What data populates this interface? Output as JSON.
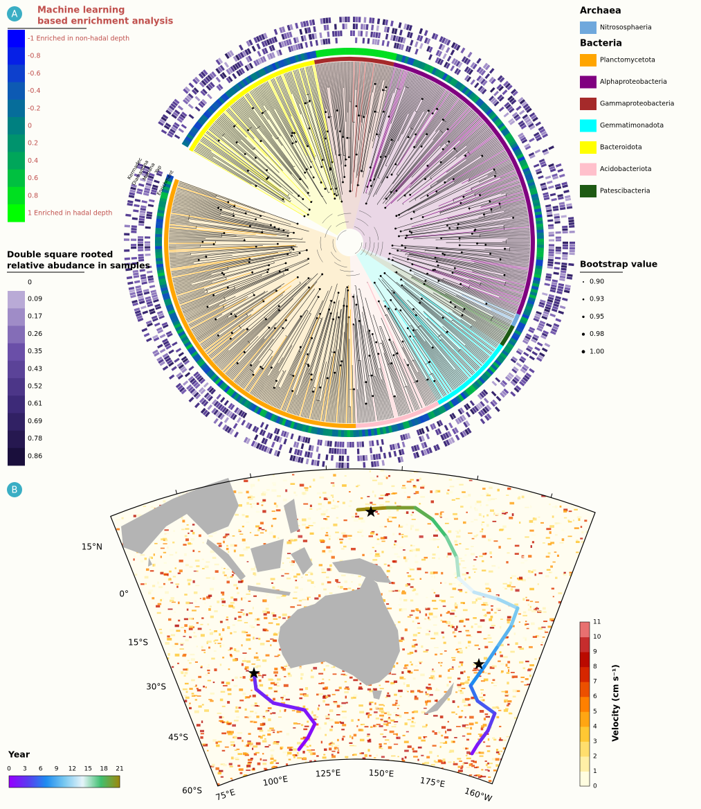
{
  "panel_a": {
    "label": "A",
    "enrichment_legend": {
      "title": [
        "Machine learning",
        "based enrichment analysis"
      ],
      "ticks": [
        "-1 Enriched in non-hadal depth",
        "-0.8",
        "-0.6",
        "-0.4",
        "-0.2",
        "0",
        "0.2",
        "0.4",
        "0.6",
        "0.8",
        "1 Enriched in hadal depth"
      ]
    },
    "abundance_legend": {
      "title": [
        "Double square rooted",
        "relative abudance in samples"
      ],
      "ticks": [
        "0",
        "0.09",
        "0.17",
        "0.26",
        "0.35",
        "0.43",
        "0.52",
        "0.61",
        "0.69",
        "0.78",
        "0.86"
      ]
    },
    "ring_labels": [
      "Kermadec",
      "Diamantina",
      "Mariana",
      "Yap",
      "Enrichment"
    ],
    "taxa_legend": {
      "groups": [
        {
          "name": "Archaea",
          "items": [
            {
              "name": "Nitrososphaeria",
              "color": "#6fa8dc"
            }
          ]
        },
        {
          "name": "Bacteria",
          "items": [
            {
              "name": "Planctomycetota",
              "color": "#ffa500"
            },
            {
              "name": "Alphaproteobacteria",
              "color": "#800080"
            },
            {
              "name": "Gammaproteobacteria",
              "color": "#a52a2a"
            },
            {
              "name": "Gemmatimonadota",
              "color": "#00ffff"
            },
            {
              "name": "Bacteroidota",
              "color": "#ffff00"
            },
            {
              "name": "Acidobacteriota",
              "color": "#ffc0cb"
            },
            {
              "name": "Patescibacteria",
              "color": "#1e5a14"
            }
          ]
        }
      ]
    },
    "bootstrap_legend": {
      "title": "Bootstrap value",
      "items": [
        "0.90",
        "0.93",
        "0.95",
        "0.98",
        "1.00"
      ]
    }
  },
  "panel_b": {
    "label": "B",
    "lat_labels": [
      "15°N",
      "0°",
      "15°S",
      "30°S",
      "45°S",
      "60°S"
    ],
    "lon_labels": [
      "75°E",
      "100°E",
      "125°E",
      "150°E",
      "175°E",
      "160°W"
    ],
    "velocity_colorbar": {
      "label": "Velocity (cm s⁻¹)",
      "ticks": [
        "0",
        "1",
        "2",
        "3",
        "4",
        "5",
        "6",
        "7",
        "8",
        "9",
        "10",
        "11"
      ]
    },
    "year_colorbar": {
      "label": "Year",
      "ticks": [
        "0",
        "3",
        "6",
        "9",
        "12",
        "15",
        "18",
        "21"
      ]
    }
  }
}
